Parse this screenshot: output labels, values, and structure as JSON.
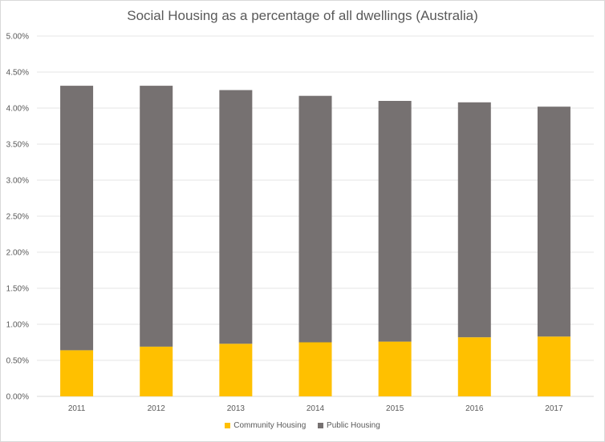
{
  "chart_data": {
    "type": "bar",
    "stacked": true,
    "title": "Social Housing as a percentage of all dwellings (Australia)",
    "xlabel": "",
    "ylabel": "",
    "categories": [
      "2011",
      "2012",
      "2013",
      "2014",
      "2015",
      "2016",
      "2017"
    ],
    "series": [
      {
        "name": "Community Housing",
        "color": "#FFC000",
        "values": [
          0.64,
          0.69,
          0.73,
          0.75,
          0.76,
          0.82,
          0.83
        ]
      },
      {
        "name": "Public Housing",
        "color": "#767171",
        "values": [
          3.67,
          3.62,
          3.52,
          3.42,
          3.34,
          3.26,
          3.19
        ]
      }
    ],
    "ylim": [
      0,
      5
    ],
    "yticks": [
      "0.00%",
      "0.50%",
      "1.00%",
      "1.50%",
      "2.00%",
      "2.50%",
      "3.00%",
      "3.50%",
      "4.00%",
      "4.50%",
      "5.00%"
    ],
    "grid": true,
    "legend_position": "bottom"
  }
}
